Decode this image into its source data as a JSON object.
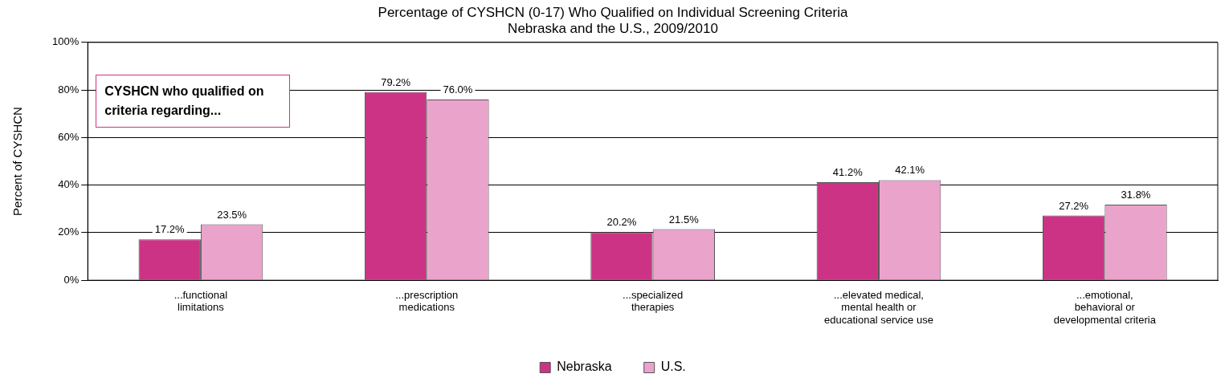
{
  "chart_data": {
    "type": "bar",
    "title": "Percentage of CYSHCN (0-17) Who Qualified on Individual Screening Criteria",
    "subtitle": "Nebraska and the U.S., 2009/2010",
    "ylabel": "Percent of CYSHCN",
    "categories": [
      "...functional limitations",
      "...prescription medications",
      "...specialized therapies",
      "...elevated medical, mental health or educational service use",
      "...emotional, behavioral or developmental criteria"
    ],
    "series": [
      {
        "name": "Nebraska",
        "color": "#cc3385",
        "values": [
          17.2,
          79.2,
          20.2,
          41.2,
          27.2
        ],
        "value_labels": [
          "17.2%",
          "79.2%",
          "20.2%",
          "41.2%",
          "27.2%"
        ]
      },
      {
        "name": "U.S.",
        "color": "#eaa3cb",
        "values": [
          23.5,
          76.0,
          21.5,
          42.1,
          31.8
        ],
        "value_labels": [
          "23.5%",
          "76.0%",
          "21.5%",
          "42.1%",
          "31.8%"
        ]
      }
    ],
    "ylim": [
      0,
      100
    ],
    "yticks": [
      {
        "value": 0,
        "label": "0%"
      },
      {
        "value": 20,
        "label": "20%"
      },
      {
        "value": 40,
        "label": "40%"
      },
      {
        "value": 60,
        "label": "60%"
      },
      {
        "value": 80,
        "label": "80%"
      },
      {
        "value": 100,
        "label": "100%"
      }
    ],
    "grid": "y",
    "legend": "bottom",
    "annotations": [
      "CYSHCN who qualified on criteria regarding..."
    ]
  }
}
